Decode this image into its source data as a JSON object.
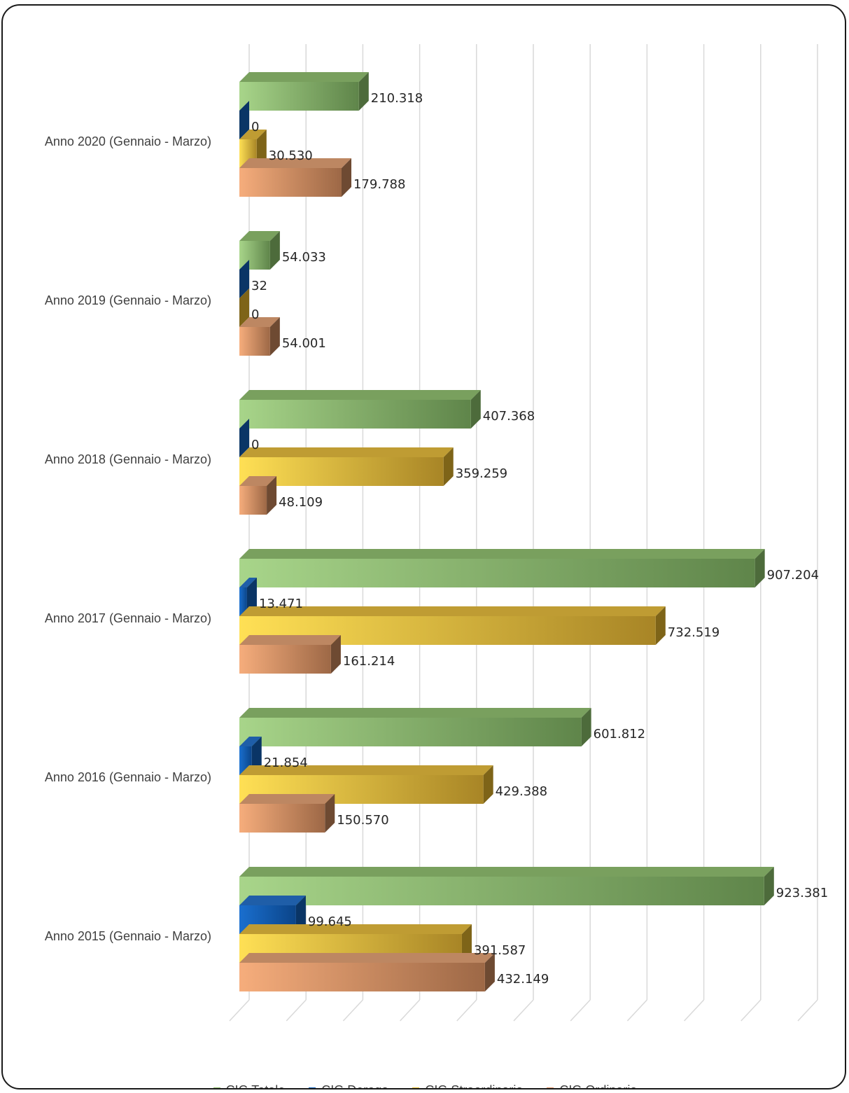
{
  "chart_data": {
    "type": "bar",
    "orientation": "horizontal",
    "style": "3d-clustered",
    "categories": [
      "Anno 2020 (Gennaio - Marzo)",
      "Anno 2019 (Gennaio - Marzo)",
      "Anno 2018 (Gennaio - Marzo)",
      "Anno 2017 (Gennaio - Marzo)",
      "Anno 2016 (Gennaio - Marzo)",
      "Anno 2015 (Gennaio - Marzo)"
    ],
    "series": [
      {
        "name": "CIG Totale",
        "color": "#8fbc6e",
        "values": [
          210318,
          54033,
          407368,
          907204,
          601812,
          923381
        ],
        "labels": [
          "210.318",
          "54.033",
          "407.368",
          "907.204",
          "601.812",
          "923.381"
        ]
      },
      {
        "name": "CIG Deroga",
        "color": "#1565c0",
        "values": [
          0,
          32,
          0,
          13471,
          21854,
          99645
        ],
        "labels": [
          "0",
          "32",
          "0",
          "13.471",
          "21.854",
          "99.645"
        ]
      },
      {
        "name": "CIG Straordinaria",
        "color": "#e8c23a",
        "values": [
          30530,
          0,
          359259,
          732519,
          429388,
          391587
        ],
        "labels": [
          "30.530",
          "0",
          "359.259",
          "732.519",
          "429.388",
          "391.587"
        ]
      },
      {
        "name": "CIG Ordinaria",
        "color": "#e0956a",
        "values": [
          179788,
          54001,
          48109,
          161214,
          150570,
          432149
        ],
        "labels": [
          "179.788",
          "54.001",
          "48.109",
          "161.214",
          "150.570",
          "432.149"
        ]
      }
    ],
    "xlim": [
      0,
      1000000
    ],
    "grid": true,
    "legend_position": "bottom"
  }
}
